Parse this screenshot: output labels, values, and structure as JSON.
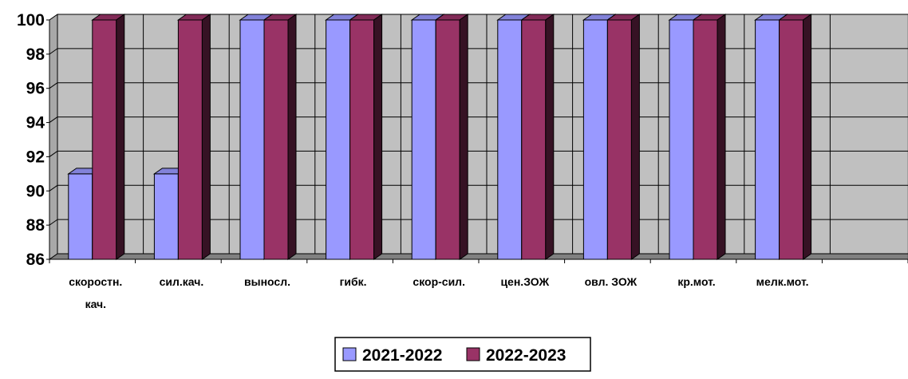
{
  "chart_data": {
    "type": "bar",
    "title": "",
    "xlabel": "",
    "ylabel": "",
    "categories": [
      [
        "скоростн.",
        "кач."
      ],
      [
        "сил.кач."
      ],
      [
        "выносл."
      ],
      [
        "гибк."
      ],
      [
        "скор-сил."
      ],
      [
        "цен.ЗОЖ"
      ],
      [
        "овл. ЗОЖ"
      ],
      [
        "кр.мот."
      ],
      [
        "мелк.мот."
      ],
      [
        ""
      ]
    ],
    "series": [
      {
        "name": "2021-2022",
        "color": "#9999FF",
        "values": [
          91,
          91,
          100,
          100,
          100,
          100,
          100,
          100,
          100,
          null
        ]
      },
      {
        "name": "2022-2023",
        "color": "#993366",
        "values": [
          100,
          100,
          100,
          100,
          100,
          100,
          100,
          100,
          100,
          null
        ]
      }
    ],
    "ylim": [
      86,
      100
    ],
    "yticks": [
      "86",
      "88",
      "90",
      "92",
      "94",
      "96",
      "98",
      "100"
    ],
    "grid": true,
    "legend_position": "bottom",
    "style": "3d-clustered-column",
    "wall_color": "#C0C0C0"
  }
}
